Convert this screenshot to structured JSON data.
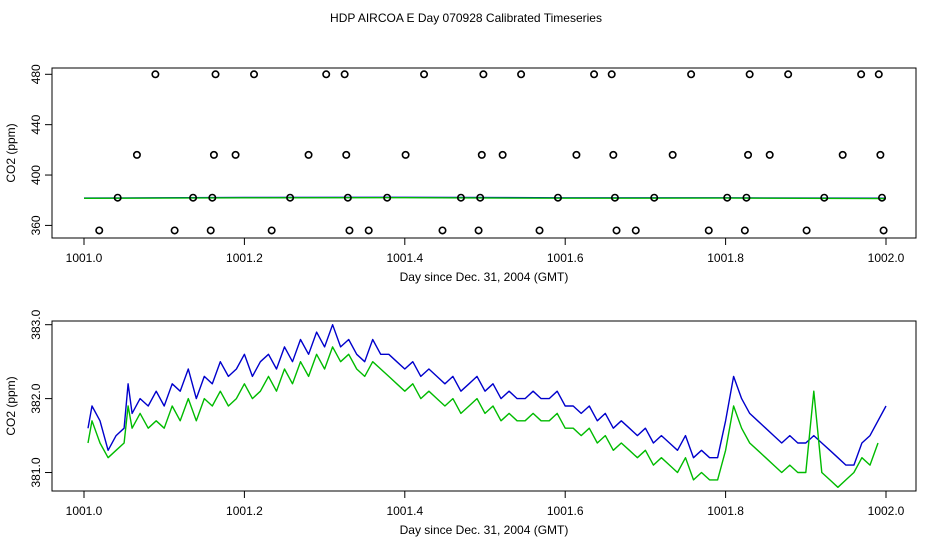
{
  "title": "HDP AIRCOA E  Day 070928  Calibrated Timeseries",
  "colors": {
    "series_a": "#0000cc",
    "series_b": "#00bb00",
    "points": "#000000"
  },
  "chart_data": [
    {
      "type": "scatter",
      "xlabel": "Day since Dec. 31, 2004 (GMT)",
      "ylabel": "CO2 (ppm)",
      "xlim": [
        1001.0,
        1002.0
      ],
      "ylim": [
        350,
        485
      ],
      "xticks": [
        1001.0,
        1001.2,
        1001.4,
        1001.6,
        1001.8,
        1002.0
      ],
      "xtick_labels": [
        "1001.0",
        "1001.2",
        "1001.4",
        "1001.6",
        "1001.8",
        "1002.0"
      ],
      "yticks": [
        360,
        400,
        440,
        480
      ],
      "ytick_labels": [
        "360",
        "400",
        "440",
        "480"
      ],
      "grid": false,
      "points": [
        {
          "x": 1001.019,
          "y": 356
        },
        {
          "x": 1001.042,
          "y": 382
        },
        {
          "x": 1001.066,
          "y": 416
        },
        {
          "x": 1001.089,
          "y": 480
        },
        {
          "x": 1001.113,
          "y": 356
        },
        {
          "x": 1001.136,
          "y": 382
        },
        {
          "x": 1001.158,
          "y": 356
        },
        {
          "x": 1001.16,
          "y": 382
        },
        {
          "x": 1001.162,
          "y": 416
        },
        {
          "x": 1001.164,
          "y": 480
        },
        {
          "x": 1001.189,
          "y": 416
        },
        {
          "x": 1001.212,
          "y": 480
        },
        {
          "x": 1001.234,
          "y": 356
        },
        {
          "x": 1001.257,
          "y": 382
        },
        {
          "x": 1001.28,
          "y": 416
        },
        {
          "x": 1001.302,
          "y": 480
        },
        {
          "x": 1001.325,
          "y": 480
        },
        {
          "x": 1001.327,
          "y": 416
        },
        {
          "x": 1001.329,
          "y": 382
        },
        {
          "x": 1001.331,
          "y": 356
        },
        {
          "x": 1001.355,
          "y": 356
        },
        {
          "x": 1001.378,
          "y": 382
        },
        {
          "x": 1001.401,
          "y": 416
        },
        {
          "x": 1001.424,
          "y": 480
        },
        {
          "x": 1001.447,
          "y": 356
        },
        {
          "x": 1001.47,
          "y": 382
        },
        {
          "x": 1001.492,
          "y": 356
        },
        {
          "x": 1001.494,
          "y": 382
        },
        {
          "x": 1001.496,
          "y": 416
        },
        {
          "x": 1001.498,
          "y": 480
        },
        {
          "x": 1001.522,
          "y": 416
        },
        {
          "x": 1001.545,
          "y": 480
        },
        {
          "x": 1001.568,
          "y": 356
        },
        {
          "x": 1001.591,
          "y": 382
        },
        {
          "x": 1001.614,
          "y": 416
        },
        {
          "x": 1001.636,
          "y": 480
        },
        {
          "x": 1001.658,
          "y": 480
        },
        {
          "x": 1001.66,
          "y": 416
        },
        {
          "x": 1001.662,
          "y": 382
        },
        {
          "x": 1001.664,
          "y": 356
        },
        {
          "x": 1001.688,
          "y": 356
        },
        {
          "x": 1001.711,
          "y": 382
        },
        {
          "x": 1001.734,
          "y": 416
        },
        {
          "x": 1001.757,
          "y": 480
        },
        {
          "x": 1001.779,
          "y": 356
        },
        {
          "x": 1001.802,
          "y": 382
        },
        {
          "x": 1001.824,
          "y": 356
        },
        {
          "x": 1001.826,
          "y": 382
        },
        {
          "x": 1001.828,
          "y": 416
        },
        {
          "x": 1001.83,
          "y": 480
        },
        {
          "x": 1001.855,
          "y": 416
        },
        {
          "x": 1001.878,
          "y": 480
        },
        {
          "x": 1001.901,
          "y": 356
        },
        {
          "x": 1001.923,
          "y": 382
        },
        {
          "x": 1001.946,
          "y": 416
        },
        {
          "x": 1001.969,
          "y": 480
        },
        {
          "x": 1001.991,
          "y": 480
        },
        {
          "x": 1001.993,
          "y": 416
        },
        {
          "x": 1001.995,
          "y": 382
        },
        {
          "x": 1001.997,
          "y": 356
        }
      ],
      "series": [
        {
          "x": [
            1001.0,
            1001.2,
            1001.4,
            1001.6,
            1001.8,
            1002.0
          ],
          "values": [
            381.7,
            382.2,
            382.3,
            381.9,
            381.9,
            381.6
          ],
          "color": "#0000cc"
        },
        {
          "x": [
            1001.0,
            1001.2,
            1001.4,
            1001.6,
            1001.8,
            1002.0
          ],
          "values": [
            381.5,
            381.9,
            382.0,
            381.6,
            381.7,
            381.3
          ],
          "color": "#00bb00"
        }
      ]
    },
    {
      "type": "line",
      "xlabel": "Day since Dec. 31, 2004 (GMT)",
      "ylabel": "CO2 (ppm)",
      "xlim": [
        1001.0,
        1002.0
      ],
      "ylim": [
        380.75,
        383.05
      ],
      "xticks": [
        1001.0,
        1001.2,
        1001.4,
        1001.6,
        1001.8,
        1002.0
      ],
      "xtick_labels": [
        "1001.0",
        "1001.2",
        "1001.4",
        "1001.6",
        "1001.8",
        "1002.0"
      ],
      "yticks": [
        381.0,
        382.0,
        383.0
      ],
      "ytick_labels": [
        "381.0",
        "382.0",
        "383.0"
      ],
      "grid": false,
      "series": [
        {
          "color": "#0000cc",
          "x": [
            1001.005,
            1001.01,
            1001.02,
            1001.03,
            1001.04,
            1001.05,
            1001.055,
            1001.06,
            1001.07,
            1001.08,
            1001.09,
            1001.1,
            1001.11,
            1001.12,
            1001.13,
            1001.14,
            1001.15,
            1001.16,
            1001.17,
            1001.18,
            1001.19,
            1001.2,
            1001.21,
            1001.22,
            1001.23,
            1001.24,
            1001.25,
            1001.26,
            1001.27,
            1001.28,
            1001.29,
            1001.3,
            1001.31,
            1001.32,
            1001.33,
            1001.34,
            1001.35,
            1001.36,
            1001.37,
            1001.38,
            1001.39,
            1001.4,
            1001.41,
            1001.42,
            1001.43,
            1001.44,
            1001.45,
            1001.46,
            1001.47,
            1001.48,
            1001.49,
            1001.5,
            1001.51,
            1001.52,
            1001.53,
            1001.54,
            1001.55,
            1001.56,
            1001.57,
            1001.58,
            1001.59,
            1001.6,
            1001.61,
            1001.62,
            1001.63,
            1001.64,
            1001.65,
            1001.66,
            1001.67,
            1001.68,
            1001.69,
            1001.7,
            1001.71,
            1001.72,
            1001.73,
            1001.74,
            1001.75,
            1001.76,
            1001.77,
            1001.78,
            1001.79,
            1001.8,
            1001.81,
            1001.82,
            1001.83,
            1001.84,
            1001.85,
            1001.86,
            1001.87,
            1001.88,
            1001.89,
            1001.9,
            1001.91,
            1001.92,
            1001.93,
            1001.94,
            1001.95,
            1001.96,
            1001.97,
            1001.98,
            1002.0
          ],
          "values": [
            381.6,
            381.9,
            381.7,
            381.3,
            381.5,
            381.6,
            382.2,
            381.8,
            382.0,
            381.9,
            382.1,
            381.9,
            382.2,
            382.1,
            382.4,
            382.0,
            382.3,
            382.2,
            382.5,
            382.3,
            382.4,
            382.6,
            382.3,
            382.5,
            382.6,
            382.4,
            382.7,
            382.5,
            382.8,
            382.6,
            382.9,
            382.7,
            383.0,
            382.7,
            382.8,
            382.6,
            382.5,
            382.8,
            382.6,
            382.6,
            382.5,
            382.4,
            382.5,
            382.3,
            382.4,
            382.3,
            382.2,
            382.3,
            382.1,
            382.2,
            382.3,
            382.1,
            382.2,
            382.0,
            382.1,
            382.0,
            382.0,
            382.1,
            382.0,
            382.0,
            382.1,
            381.9,
            381.9,
            381.8,
            381.9,
            381.7,
            381.8,
            381.6,
            381.7,
            381.6,
            381.5,
            381.6,
            381.4,
            381.5,
            381.4,
            381.3,
            381.5,
            381.2,
            381.3,
            381.2,
            381.2,
            381.7,
            382.3,
            382.0,
            381.8,
            381.7,
            381.6,
            381.5,
            381.4,
            381.5,
            381.4,
            381.4,
            381.5,
            381.4,
            381.3,
            381.2,
            381.1,
            381.1,
            381.4,
            381.5,
            381.9
          ]
        },
        {
          "color": "#00bb00",
          "x": [
            1001.005,
            1001.01,
            1001.02,
            1001.03,
            1001.04,
            1001.05,
            1001.055,
            1001.06,
            1001.07,
            1001.08,
            1001.09,
            1001.1,
            1001.11,
            1001.12,
            1001.13,
            1001.14,
            1001.15,
            1001.16,
            1001.17,
            1001.18,
            1001.19,
            1001.2,
            1001.21,
            1001.22,
            1001.23,
            1001.24,
            1001.25,
            1001.26,
            1001.27,
            1001.28,
            1001.29,
            1001.3,
            1001.31,
            1001.32,
            1001.33,
            1001.34,
            1001.35,
            1001.36,
            1001.37,
            1001.38,
            1001.39,
            1001.4,
            1001.41,
            1001.42,
            1001.43,
            1001.44,
            1001.45,
            1001.46,
            1001.47,
            1001.48,
            1001.49,
            1001.5,
            1001.51,
            1001.52,
            1001.53,
            1001.54,
            1001.55,
            1001.56,
            1001.57,
            1001.58,
            1001.59,
            1001.6,
            1001.61,
            1001.62,
            1001.63,
            1001.64,
            1001.65,
            1001.66,
            1001.67,
            1001.68,
            1001.69,
            1001.7,
            1001.71,
            1001.72,
            1001.73,
            1001.74,
            1001.75,
            1001.76,
            1001.77,
            1001.78,
            1001.79,
            1001.8,
            1001.81,
            1001.82,
            1001.83,
            1001.84,
            1001.85,
            1001.86,
            1001.87,
            1001.88,
            1001.89,
            1001.9,
            1001.91,
            1001.92,
            1001.93,
            1001.94,
            1001.95,
            1001.96,
            1001.97,
            1001.98,
            1001.99
          ],
          "values": [
            381.4,
            381.7,
            381.4,
            381.2,
            381.3,
            381.4,
            381.9,
            381.6,
            381.8,
            381.6,
            381.7,
            381.6,
            381.9,
            381.7,
            382.0,
            381.7,
            382.0,
            381.9,
            382.1,
            381.9,
            382.0,
            382.2,
            382.0,
            382.1,
            382.3,
            382.1,
            382.4,
            382.2,
            382.5,
            382.3,
            382.6,
            382.4,
            382.7,
            382.5,
            382.6,
            382.4,
            382.3,
            382.5,
            382.4,
            382.3,
            382.2,
            382.1,
            382.2,
            382.0,
            382.1,
            382.0,
            381.9,
            382.0,
            381.8,
            381.9,
            382.0,
            381.8,
            381.9,
            381.7,
            381.8,
            381.7,
            381.7,
            381.8,
            381.7,
            381.7,
            381.8,
            381.6,
            381.6,
            381.5,
            381.6,
            381.4,
            381.5,
            381.3,
            381.4,
            381.3,
            381.2,
            381.3,
            381.1,
            381.2,
            381.1,
            381.0,
            381.2,
            380.9,
            381.0,
            380.9,
            380.9,
            381.3,
            381.9,
            381.6,
            381.4,
            381.3,
            381.2,
            381.1,
            381.0,
            381.1,
            381.0,
            381.0,
            382.1,
            381.0,
            380.9,
            380.8,
            380.9,
            381.0,
            381.2,
            381.1,
            381.4
          ]
        }
      ]
    }
  ]
}
